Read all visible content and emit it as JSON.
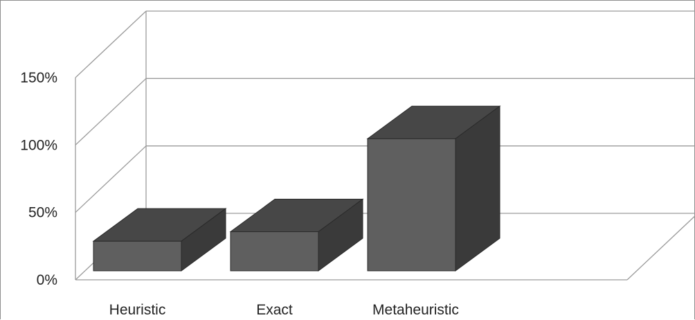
{
  "chart_data": {
    "type": "bar",
    "categories": [
      "Heuristic",
      "Exact",
      "Metaheuristic"
    ],
    "values": [
      22,
      29,
      98
    ],
    "ylim": [
      0,
      150
    ],
    "yticks": [
      "0%",
      "50%",
      "100%",
      "150%"
    ],
    "ytick_values": [
      0,
      50,
      100,
      150
    ],
    "grid": true,
    "legend": "none",
    "three_d": true,
    "colors": {
      "front": "#5f5f5f",
      "top": "#474747",
      "side": "#3a3a3a",
      "edge": "#2a2a2a",
      "gridline": "#9a9a9a"
    }
  }
}
